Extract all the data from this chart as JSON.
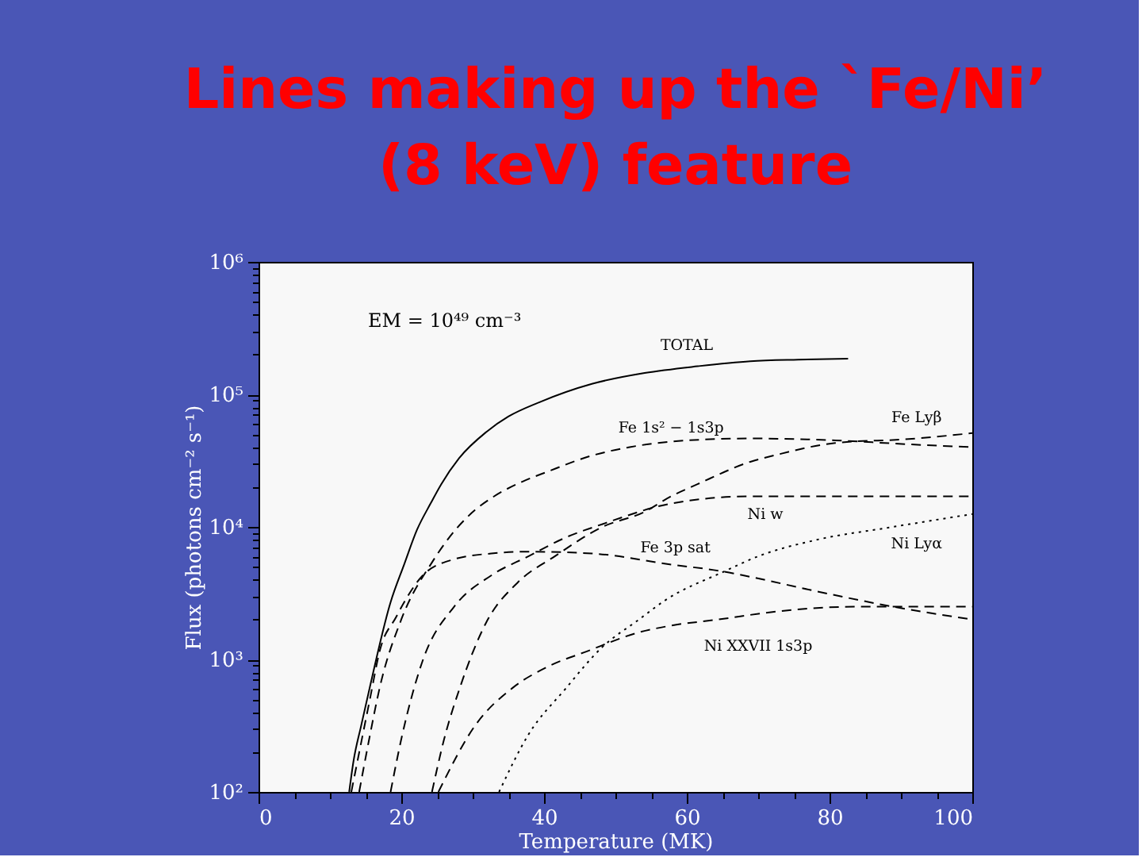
{
  "chart_data": {
    "type": "line",
    "title": "Lines making up the `Fe/Ni’ (8 keV) feature",
    "xlabel": "Temperature (MK)",
    "ylabel": "Flux (photons cm⁻² s⁻¹)",
    "annotations": [
      "EM = 10⁴⁹ cm⁻³"
    ],
    "log": "y",
    "grid": false,
    "legend": false,
    "xlim": [
      0,
      100
    ],
    "xticks": [
      0,
      {
        "value": 5,
        "label": null
      },
      {
        "value": 10,
        "label": null
      },
      {
        "value": 15,
        "label": null
      },
      20,
      {
        "value": 25,
        "label": null
      },
      {
        "value": 30,
        "label": null
      },
      {
        "value": 35,
        "label": null
      },
      40,
      {
        "value": 45,
        "label": null
      },
      {
        "value": 50,
        "label": null
      },
      {
        "value": 55,
        "label": null
      },
      60,
      {
        "value": 65,
        "label": null
      },
      {
        "value": 70,
        "label": null
      },
      {
        "value": 75,
        "label": null
      },
      80,
      {
        "value": 85,
        "label": null
      },
      {
        "value": 90,
        "label": null
      },
      {
        "value": 95,
        "label": null
      },
      100
    ],
    "ylim": [
      100,
      1000000
    ],
    "yticks": [
      {
        "value": 100,
        "label": "10²"
      },
      {
        "value": 200,
        "label": null
      },
      {
        "value": 300,
        "label": null
      },
      {
        "value": 400,
        "label": null
      },
      {
        "value": 500,
        "label": null
      },
      {
        "value": 600,
        "label": null
      },
      {
        "value": 700,
        "label": null
      },
      {
        "value": 800,
        "label": null
      },
      {
        "value": 900,
        "label": null
      },
      {
        "value": 1000,
        "label": "10³"
      },
      {
        "value": 2000,
        "label": null
      },
      {
        "value": 3000,
        "label": null
      },
      {
        "value": 4000,
        "label": null
      },
      {
        "value": 5000,
        "label": null
      },
      {
        "value": 6000,
        "label": null
      },
      {
        "value": 7000,
        "label": null
      },
      {
        "value": 8000,
        "label": null
      },
      {
        "value": 9000,
        "label": null
      },
      {
        "value": 10000,
        "label": "10⁴"
      },
      {
        "value": 20000,
        "label": null
      },
      {
        "value": 30000,
        "label": null
      },
      {
        "value": 40000,
        "label": null
      },
      {
        "value": 50000,
        "label": null
      },
      {
        "value": 60000,
        "label": null
      },
      {
        "value": 70000,
        "label": null
      },
      {
        "value": 80000,
        "label": null
      },
      {
        "value": 90000,
        "label": null
      },
      {
        "value": 100000,
        "label": "10⁵"
      },
      {
        "value": 200000,
        "label": null
      },
      {
        "value": 300000,
        "label": null
      },
      {
        "value": 400000,
        "label": null
      },
      {
        "value": 500000,
        "label": null
      },
      {
        "value": 600000,
        "label": null
      },
      {
        "value": 700000,
        "label": null
      },
      {
        "value": 800000,
        "label": null
      },
      {
        "value": 900000,
        "label": null
      },
      {
        "value": 1000000,
        "label": "10⁶"
      }
    ],
    "series": [
      {
        "name": "TOTAL",
        "color": "#000000",
        "line_style": "solid",
        "x": [
          12.7,
          13.3,
          14.4,
          15.6,
          18.5,
          20.4,
          22.2,
          24.1,
          25.6,
          28.1,
          31.9,
          35,
          39.3,
          46.7,
          54.1,
          61.5,
          68.9,
          75.6,
          82.6
        ],
        "values": [
          100,
          170,
          320,
          620,
          2700,
          5200,
          9500,
          15000,
          21000,
          33000,
          52000,
          68000,
          87000,
          120000,
          145000,
          163000,
          178000,
          183000,
          186000
        ]
      },
      {
        "name": "Fe 1s² − 1s3p",
        "color": "#000000",
        "line_style": "dashed",
        "x": [
          14.1,
          15.5,
          17,
          20,
          24.4,
          27.8,
          30.4,
          33,
          37,
          40.4,
          46.7,
          52,
          57.8,
          64,
          68.9,
          75,
          80.8,
          86,
          91.1,
          100
        ],
        "values": [
          100,
          250,
          620,
          2000,
          5500,
          9800,
          13500,
          17000,
          22000,
          26000,
          34500,
          40000,
          44000,
          46000,
          46500,
          46000,
          45000,
          43500,
          42000,
          40000
        ]
      },
      {
        "name": "Fe Lyβ",
        "color": "#000000",
        "line_style": "dashed",
        "x": [
          24.3,
          26,
          28.2,
          31.9,
          36.3,
          41.5,
          48.2,
          54.1,
          57.8,
          61.5,
          68.9,
          72.6,
          80.8,
          91.1,
          100
        ],
        "values": [
          100,
          250,
          610,
          1900,
          3800,
          6000,
          10000,
          13000,
          17000,
          21000,
          31000,
          35000,
          43000,
          46000,
          51000
        ]
      },
      {
        "name": "Ni w",
        "color": "#000000",
        "line_style": "dashed",
        "x": [
          18.5,
          20,
          23,
          27.4,
          32.6,
          37.8,
          43,
          48.2,
          57.8,
          68.9,
          80,
          100
        ],
        "values": [
          100,
          250,
          980,
          2500,
          4300,
          6000,
          8300,
          10500,
          15000,
          17000,
          17000,
          17000
        ]
      },
      {
        "name": "Ni Lyα",
        "color": "#000000",
        "line_style": "dotted",
        "x": [
          33.7,
          37.8,
          43,
          48.1,
          53.3,
          57,
          65.2,
          70,
          77.8,
          88.9,
          100
        ],
        "values": [
          100,
          270,
          600,
          1230,
          2000,
          2800,
          4600,
          6000,
          7900,
          10000,
          12500
        ]
      },
      {
        "name": "Fe 3p sat",
        "color": "#000000",
        "line_style": "dashed",
        "x": [
          13,
          15.6,
          17,
          19.3,
          20.4,
          23,
          27.4,
          32.6,
          37.8,
          46.7,
          57.8,
          65.2,
          68.9,
          77.8,
          88.9,
          100
        ],
        "values": [
          100,
          500,
          1170,
          2100,
          2700,
          4300,
          5700,
          6300,
          6500,
          6300,
          5200,
          4600,
          4200,
          3300,
          2500,
          2000
        ]
      },
      {
        "name": "Ni XXVII 1s3p",
        "color": "#000000",
        "line_style": "dashed",
        "x": [
          25.2,
          30.4,
          35.6,
          40.7,
          46,
          53.3,
          57.8,
          64.4,
          72.6,
          83.7,
          100
        ],
        "values": [
          100,
          320,
          610,
          890,
          1150,
          1600,
          1800,
          2000,
          2300,
          2500,
          2500
        ]
      }
    ]
  }
}
